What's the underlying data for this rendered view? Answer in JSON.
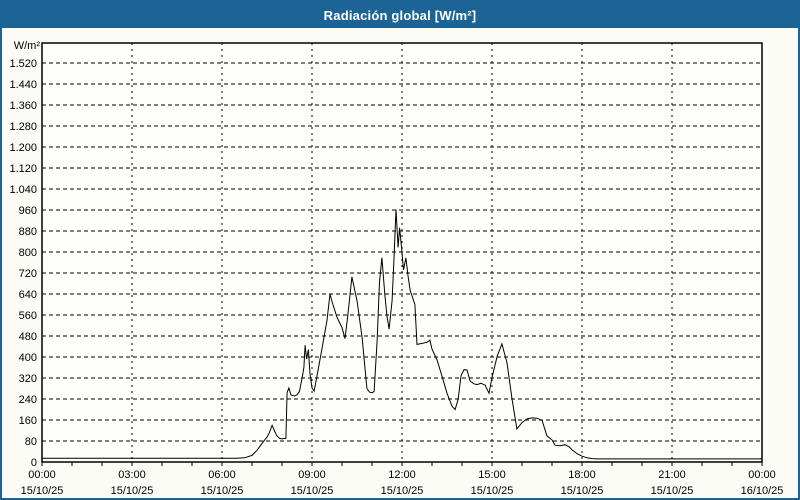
{
  "window": {
    "title": "Radiación global [W/m²]"
  },
  "colors": {
    "titlebar": "#1d6496",
    "outer_border": "#1d6496",
    "background": "#fcfcf6",
    "plot_background": "#fefefb",
    "grid": "#000000",
    "axis": "#000000",
    "line": "#000000",
    "title_text": "#ffffff",
    "label_text": "#000000"
  },
  "chart_data": {
    "type": "line",
    "title": "Radiación global [W/m²]",
    "ylabel": "W/m²",
    "xlabel": "",
    "ylim": [
      0,
      1520
    ],
    "y_tick_step": 80,
    "y_tick_labels": [
      "0",
      "80",
      "160",
      "240",
      "320",
      "400",
      "480",
      "560",
      "640",
      "720",
      "800",
      "880",
      "960",
      "1.040",
      "1.120",
      "1.200",
      "1.280",
      "1.360",
      "1.440",
      "1.520"
    ],
    "xlim_hours": [
      0,
      24
    ],
    "x_minor_step_hours": 1,
    "grid": "dashed",
    "legend": "none",
    "x_ticks": [
      {
        "h": 0,
        "time": "00:00",
        "date": "15/10/25"
      },
      {
        "h": 3,
        "time": "03:00",
        "date": "15/10/25"
      },
      {
        "h": 6,
        "time": "06:00",
        "date": "15/10/25"
      },
      {
        "h": 9,
        "time": "09:00",
        "date": "15/10/25"
      },
      {
        "h": 12,
        "time": "12:00",
        "date": "15/10/25"
      },
      {
        "h": 15,
        "time": "15:00",
        "date": "15/10/25"
      },
      {
        "h": 18,
        "time": "18:00",
        "date": "15/10/25"
      },
      {
        "h": 21,
        "time": "21:00",
        "date": "15/10/25"
      },
      {
        "h": 24,
        "time": "00:00",
        "date": "16/10/25"
      }
    ],
    "series": [
      [
        0,
        14
      ],
      [
        0.5,
        14
      ],
      [
        1,
        14
      ],
      [
        1.5,
        14
      ],
      [
        2,
        14
      ],
      [
        2.5,
        14
      ],
      [
        3,
        14
      ],
      [
        3.5,
        14
      ],
      [
        4,
        14
      ],
      [
        4.5,
        14
      ],
      [
        5,
        14
      ],
      [
        5.5,
        14
      ],
      [
        6,
        14
      ],
      [
        6.5,
        14
      ],
      [
        6.75,
        16
      ],
      [
        7,
        25
      ],
      [
        7.17,
        45
      ],
      [
        7.33,
        70
      ],
      [
        7.5,
        95
      ],
      [
        7.58,
        112
      ],
      [
        7.67,
        140
      ],
      [
        7.75,
        118
      ],
      [
        7.83,
        100
      ],
      [
        7.92,
        90
      ],
      [
        8,
        88
      ],
      [
        8.08,
        90
      ],
      [
        8.13,
        90
      ],
      [
        8.17,
        265
      ],
      [
        8.23,
        282
      ],
      [
        8.3,
        255
      ],
      [
        8.42,
        252
      ],
      [
        8.5,
        256
      ],
      [
        8.58,
        268
      ],
      [
        8.67,
        320
      ],
      [
        8.73,
        360
      ],
      [
        8.77,
        445
      ],
      [
        8.82,
        392
      ],
      [
        8.88,
        428
      ],
      [
        8.93,
        340
      ],
      [
        9,
        282
      ],
      [
        9.07,
        270
      ],
      [
        9.17,
        330
      ],
      [
        9.33,
        430
      ],
      [
        9.5,
        540
      ],
      [
        9.6,
        640
      ],
      [
        9.67,
        610
      ],
      [
        9.83,
        552
      ],
      [
        10,
        512
      ],
      [
        10.1,
        470
      ],
      [
        10.2,
        565
      ],
      [
        10.33,
        705
      ],
      [
        10.5,
        615
      ],
      [
        10.67,
        475
      ],
      [
        10.83,
        280
      ],
      [
        10.92,
        266
      ],
      [
        11,
        264
      ],
      [
        11.07,
        268
      ],
      [
        11.17,
        460
      ],
      [
        11.25,
        685
      ],
      [
        11.33,
        778
      ],
      [
        11.43,
        635
      ],
      [
        11.5,
        555
      ],
      [
        11.57,
        506
      ],
      [
        11.67,
        615
      ],
      [
        11.73,
        768
      ],
      [
        11.8,
        962
      ],
      [
        11.87,
        818
      ],
      [
        11.92,
        892
      ],
      [
        12,
        798
      ],
      [
        12.05,
        732
      ],
      [
        12.13,
        778
      ],
      [
        12.2,
        710
      ],
      [
        12.27,
        655
      ],
      [
        12.43,
        600
      ],
      [
        12.5,
        448
      ],
      [
        12.67,
        452
      ],
      [
        12.83,
        456
      ],
      [
        12.93,
        464
      ],
      [
        13,
        430
      ],
      [
        13.17,
        388
      ],
      [
        13.33,
        328
      ],
      [
        13.5,
        262
      ],
      [
        13.67,
        212
      ],
      [
        13.77,
        200
      ],
      [
        13.87,
        238
      ],
      [
        13.97,
        330
      ],
      [
        14.07,
        352
      ],
      [
        14.17,
        350
      ],
      [
        14.27,
        308
      ],
      [
        14.4,
        298
      ],
      [
        14.5,
        295
      ],
      [
        14.63,
        300
      ],
      [
        14.77,
        293
      ],
      [
        14.9,
        262
      ],
      [
        15,
        322
      ],
      [
        15.17,
        402
      ],
      [
        15.33,
        450
      ],
      [
        15.5,
        378
      ],
      [
        15.67,
        238
      ],
      [
        15.83,
        126
      ],
      [
        16,
        150
      ],
      [
        16.17,
        164
      ],
      [
        16.33,
        168
      ],
      [
        16.5,
        167
      ],
      [
        16.67,
        158
      ],
      [
        16.83,
        100
      ],
      [
        17,
        84
      ],
      [
        17.1,
        64
      ],
      [
        17.27,
        62
      ],
      [
        17.43,
        66
      ],
      [
        17.57,
        58
      ],
      [
        17.67,
        46
      ],
      [
        17.83,
        32
      ],
      [
        18,
        22
      ],
      [
        18.17,
        16
      ],
      [
        18.33,
        13
      ],
      [
        18.5,
        12
      ],
      [
        19,
        12
      ],
      [
        19.5,
        12
      ],
      [
        20,
        12
      ],
      [
        21,
        12
      ],
      [
        22,
        12
      ],
      [
        23,
        12
      ],
      [
        24,
        12
      ]
    ]
  }
}
